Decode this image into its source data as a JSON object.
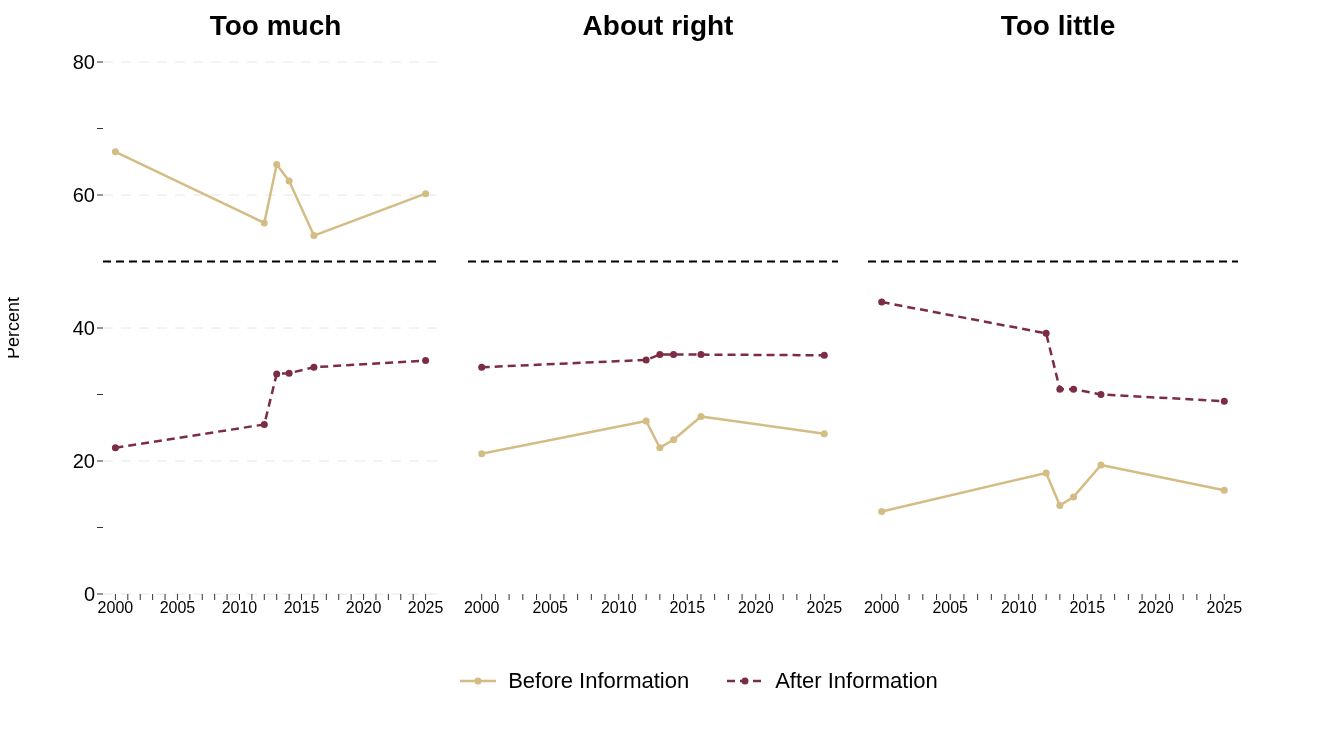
{
  "chart_data": [
    {
      "type": "line",
      "title": "Too much",
      "ylabel": "Percent",
      "x": [
        2000,
        2012,
        2013,
        2014,
        2016,
        2025
      ],
      "xlim": [
        1999,
        2026
      ],
      "ylim": [
        0,
        80
      ],
      "xticks": [
        2000,
        {
          "value": 2001,
          "label": null
        },
        {
          "value": 2002,
          "label": null
        },
        {
          "value": 2003,
          "label": null
        },
        {
          "value": 2004,
          "label": null
        },
        2005,
        {
          "value": 2006,
          "label": null
        },
        {
          "value": 2007,
          "label": null
        },
        {
          "value": 2008,
          "label": null
        },
        {
          "value": 2009,
          "label": null
        },
        2010,
        {
          "value": 2011,
          "label": null
        },
        {
          "value": 2012,
          "label": null
        },
        {
          "value": 2013,
          "label": null
        },
        {
          "value": 2014,
          "label": null
        },
        2015,
        {
          "value": 2016,
          "label": null
        },
        {
          "value": 2017,
          "label": null
        },
        {
          "value": 2018,
          "label": null
        },
        {
          "value": 2019,
          "label": null
        },
        2020,
        {
          "value": 2021,
          "label": null
        },
        {
          "value": 2022,
          "label": null
        },
        {
          "value": 2023,
          "label": null
        },
        {
          "value": 2024,
          "label": null
        },
        2025
      ],
      "yticks": [
        0,
        {
          "value": 10,
          "label": null
        },
        20,
        {
          "value": 30,
          "label": null
        },
        40,
        60,
        {
          "value": 70,
          "label": null
        },
        80
      ],
      "grid": "y",
      "legend": "bottom",
      "marker": "circle",
      "ref_lines": [
        {
          "axis": "y",
          "value": 50,
          "color": "#000000",
          "line_style": "dashed"
        }
      ],
      "series": [
        {
          "name": "Before Information",
          "color": "#d4bc85",
          "line_style": "solid",
          "values": [
            66.5,
            55.8,
            64.6,
            62.1,
            53.9,
            60.2
          ]
        },
        {
          "name": "After Information",
          "color": "#7b2d43",
          "line_style": "dashed",
          "values": [
            22.0,
            25.5,
            33.1,
            33.2,
            34.1,
            35.1
          ]
        }
      ]
    },
    {
      "type": "line",
      "title": "About right",
      "x": [
        2000,
        2012,
        2013,
        2014,
        2016,
        2025
      ],
      "xlim": [
        1999,
        2026
      ],
      "ylim": [
        0,
        80
      ],
      "xticks": [
        2000,
        {
          "value": 2001,
          "label": null
        },
        {
          "value": 2002,
          "label": null
        },
        {
          "value": 2003,
          "label": null
        },
        {
          "value": 2004,
          "label": null
        },
        2005,
        {
          "value": 2006,
          "label": null
        },
        {
          "value": 2007,
          "label": null
        },
        {
          "value": 2008,
          "label": null
        },
        {
          "value": 2009,
          "label": null
        },
        2010,
        {
          "value": 2011,
          "label": null
        },
        {
          "value": 2012,
          "label": null
        },
        {
          "value": 2013,
          "label": null
        },
        {
          "value": 2014,
          "label": null
        },
        2015,
        {
          "value": 2016,
          "label": null
        },
        {
          "value": 2017,
          "label": null
        },
        {
          "value": 2018,
          "label": null
        },
        {
          "value": 2019,
          "label": null
        },
        2020,
        {
          "value": 2021,
          "label": null
        },
        {
          "value": 2022,
          "label": null
        },
        {
          "value": 2023,
          "label": null
        },
        {
          "value": 2024,
          "label": null
        },
        2025
      ],
      "yticks": [
        0,
        20,
        40,
        60,
        80
      ],
      "tick_labels": "x",
      "grid": "y",
      "marker": "circle",
      "ref_lines": [
        {
          "axis": "y",
          "value": 50,
          "color": "#000000",
          "line_style": "dashed"
        }
      ],
      "series": [
        {
          "color": "#d4bc85",
          "line_style": "solid",
          "values": [
            21.1,
            26.0,
            22.0,
            23.2,
            26.7,
            24.1
          ]
        },
        {
          "color": "#7b2d43",
          "line_style": "dashed",
          "values": [
            34.1,
            35.2,
            36.0,
            36.0,
            36.0,
            35.9
          ]
        }
      ]
    },
    {
      "type": "line",
      "title": "Too little",
      "x": [
        2000,
        2012,
        2013,
        2014,
        2016,
        2025
      ],
      "xlim": [
        1999,
        2026
      ],
      "ylim": [
        0,
        80
      ],
      "xticks": [
        2000,
        {
          "value": 2001,
          "label": null
        },
        {
          "value": 2002,
          "label": null
        },
        {
          "value": 2003,
          "label": null
        },
        {
          "value": 2004,
          "label": null
        },
        2005,
        {
          "value": 2006,
          "label": null
        },
        {
          "value": 2007,
          "label": null
        },
        {
          "value": 2008,
          "label": null
        },
        {
          "value": 2009,
          "label": null
        },
        2010,
        {
          "value": 2011,
          "label": null
        },
        {
          "value": 2012,
          "label": null
        },
        {
          "value": 2013,
          "label": null
        },
        {
          "value": 2014,
          "label": null
        },
        2015,
        {
          "value": 2016,
          "label": null
        },
        {
          "value": 2017,
          "label": null
        },
        {
          "value": 2018,
          "label": null
        },
        {
          "value": 2019,
          "label": null
        },
        2020,
        {
          "value": 2021,
          "label": null
        },
        {
          "value": 2022,
          "label": null
        },
        {
          "value": 2023,
          "label": null
        },
        {
          "value": 2024,
          "label": null
        },
        2025
      ],
      "yticks": [
        0,
        20,
        40,
        60,
        80
      ],
      "tick_labels": "x",
      "grid": "y",
      "marker": "circle",
      "ref_lines": [
        {
          "axis": "y",
          "value": 50,
          "color": "#000000",
          "line_style": "dashed"
        }
      ],
      "series": [
        {
          "color": "#d4bc85",
          "line_style": "solid",
          "values": [
            12.4,
            18.2,
            13.3,
            14.6,
            19.4,
            15.6
          ]
        },
        {
          "color": "#7b2d43",
          "line_style": "dashed",
          "values": [
            43.9,
            39.2,
            30.8,
            30.8,
            30.0,
            29.0
          ]
        }
      ]
    }
  ]
}
